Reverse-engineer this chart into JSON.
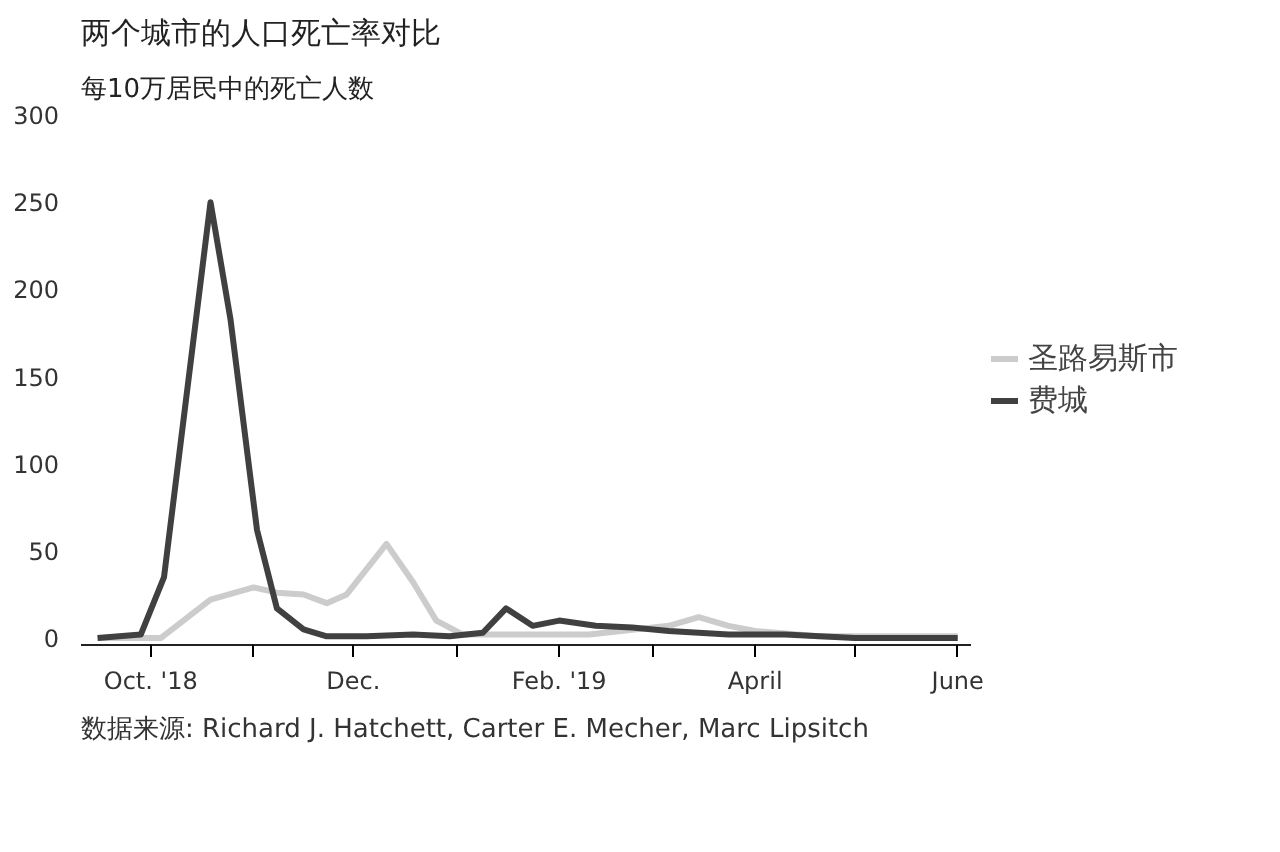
{
  "chart_data": {
    "type": "line",
    "title": "两个城市的人口死亡率对比",
    "ylabel": "每10万居民中的死亡人数",
    "annotations": [
      "数据来源: Richard J. Hatchett, Carter E. Mecher, Marc Lipsitch"
    ],
    "series": [
      {
        "name": "圣路易斯市",
        "color": "#cccccc",
        "x": [
          "2018-09-15",
          "2018-10-04",
          "2018-10-19",
          "2018-11-01",
          "2018-11-08",
          "2018-11-16",
          "2018-11-23",
          "2018-11-29",
          "2018-12-11",
          "2018-12-19",
          "2018-12-26",
          "2019-01-03",
          "2019-01-20",
          "2019-02-10",
          "2019-03-06",
          "2019-03-15",
          "2019-03-24",
          "2019-04-01",
          "2019-04-20",
          "2019-05-10",
          "2019-06-01"
        ],
        "values": [
          0,
          0,
          22,
          29,
          26,
          25,
          20,
          25,
          54,
          32,
          10,
          2,
          2,
          2,
          7,
          12,
          7,
          4,
          1,
          1,
          1
        ]
      },
      {
        "name": "费城",
        "color": "#404040",
        "x": [
          "2018-09-15",
          "2018-09-28",
          "2018-10-05",
          "2018-10-19",
          "2018-10-25",
          "2018-11-02",
          "2018-11-08",
          "2018-11-16",
          "2018-11-23",
          "2018-12-05",
          "2018-12-19",
          "2018-12-30",
          "2019-01-09",
          "2019-01-16",
          "2019-01-24",
          "2019-02-01",
          "2019-02-12",
          "2019-02-23",
          "2019-03-06",
          "2019-03-24",
          "2019-04-10",
          "2019-05-01",
          "2019-06-01"
        ],
        "values": [
          0,
          2,
          35,
          250,
          183,
          62,
          17,
          5,
          1,
          1,
          2,
          1,
          3,
          17,
          7,
          10,
          7,
          6,
          4,
          2,
          2,
          0,
          0
        ]
      }
    ],
    "xlim": [
      "2018-09-10",
      "2019-06-05"
    ],
    "xticks": [
      {
        "value": "2018-10-01",
        "label": "Oct. '18"
      },
      {
        "value": "2018-11-01",
        "label": null
      },
      {
        "value": "2018-12-01",
        "label": "Dec."
      },
      {
        "value": "2019-01-01",
        "label": null
      },
      {
        "value": "2019-02-01",
        "label": "Feb. '19"
      },
      {
        "value": "2019-03-01",
        "label": null
      },
      {
        "value": "2019-04-01",
        "label": "April"
      },
      {
        "value": "2019-05-01",
        "label": null
      },
      {
        "value": "2019-06-01",
        "label": "June"
      }
    ],
    "ylim": [
      -4,
      300
    ],
    "yticks": [
      0,
      50,
      100,
      150,
      200,
      250,
      300
    ],
    "grid": false,
    "legend": "right",
    "line_style": "solid",
    "marker": "none"
  }
}
